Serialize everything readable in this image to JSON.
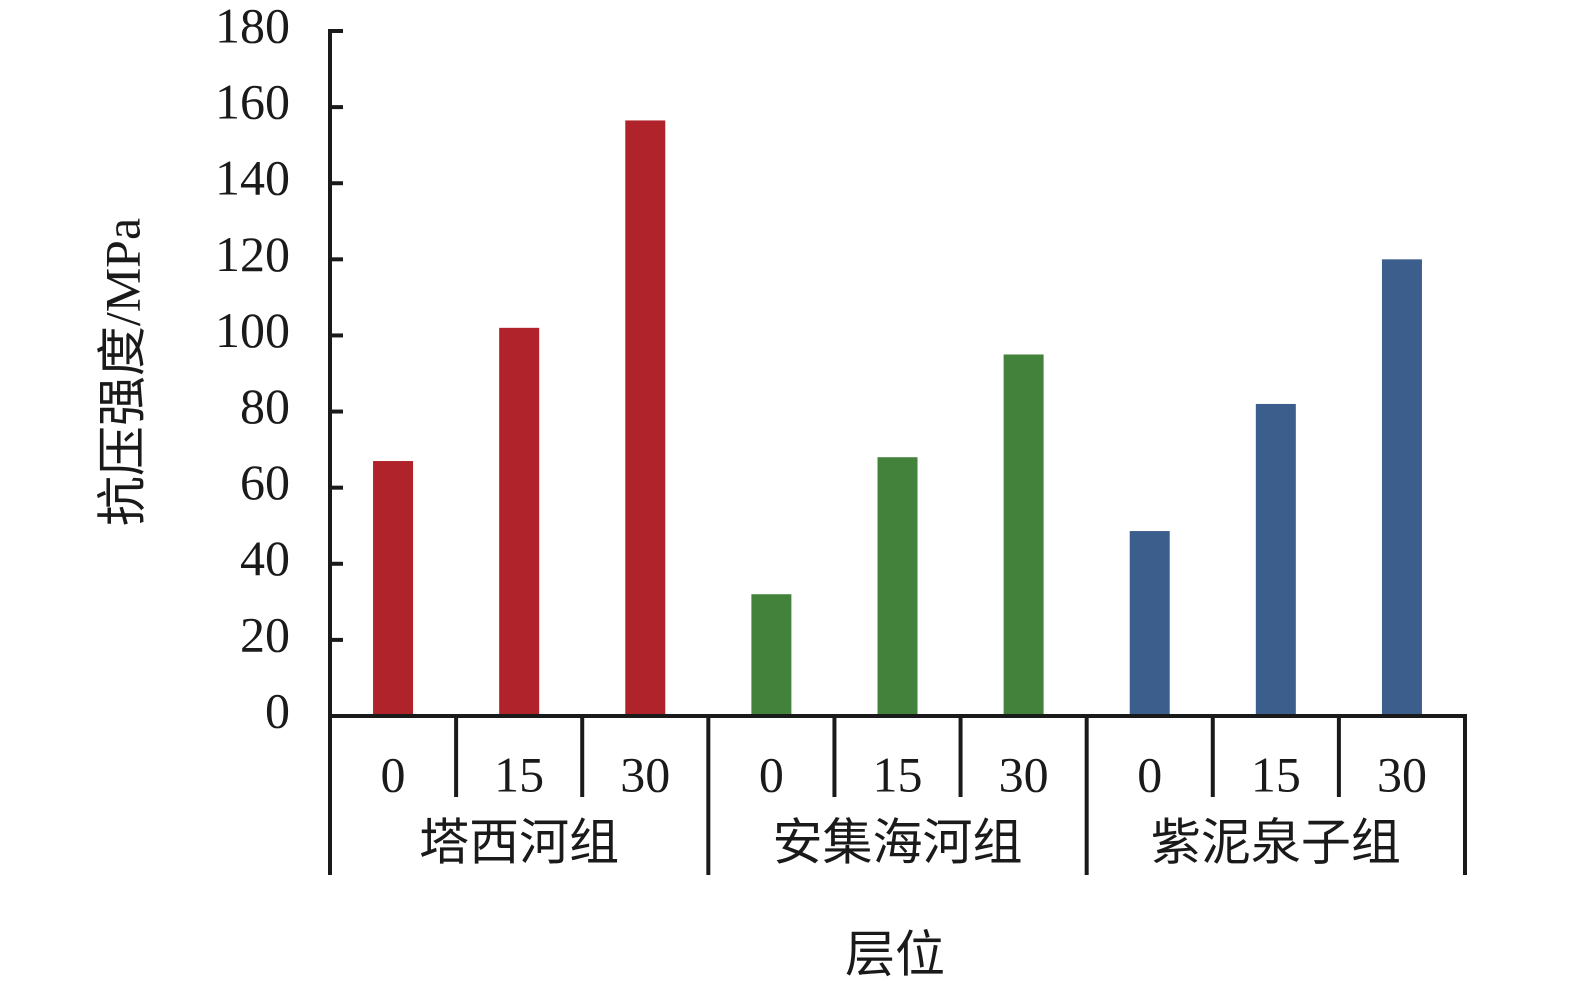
{
  "chart_data": {
    "type": "grouped-bar",
    "y_label": "抗压强度/MPa",
    "x_label": "层位",
    "ylim": [
      0,
      180
    ],
    "yticks": [
      0,
      20,
      40,
      60,
      80,
      100,
      120,
      140,
      160,
      180
    ],
    "groups": [
      {
        "name": "塔西河组",
        "color": "#b0232a",
        "categories": [
          "0",
          "15",
          "30"
        ],
        "values": [
          67,
          102,
          156.5
        ]
      },
      {
        "name": "安集海河组",
        "color": "#43823a",
        "categories": [
          "0",
          "15",
          "30"
        ],
        "values": [
          32,
          68,
          95
        ]
      },
      {
        "name": "紫泥泉子组",
        "color": "#3c5e8c",
        "categories": [
          "0",
          "15",
          "30"
        ],
        "values": [
          48.6,
          82,
          120
        ]
      }
    ]
  }
}
